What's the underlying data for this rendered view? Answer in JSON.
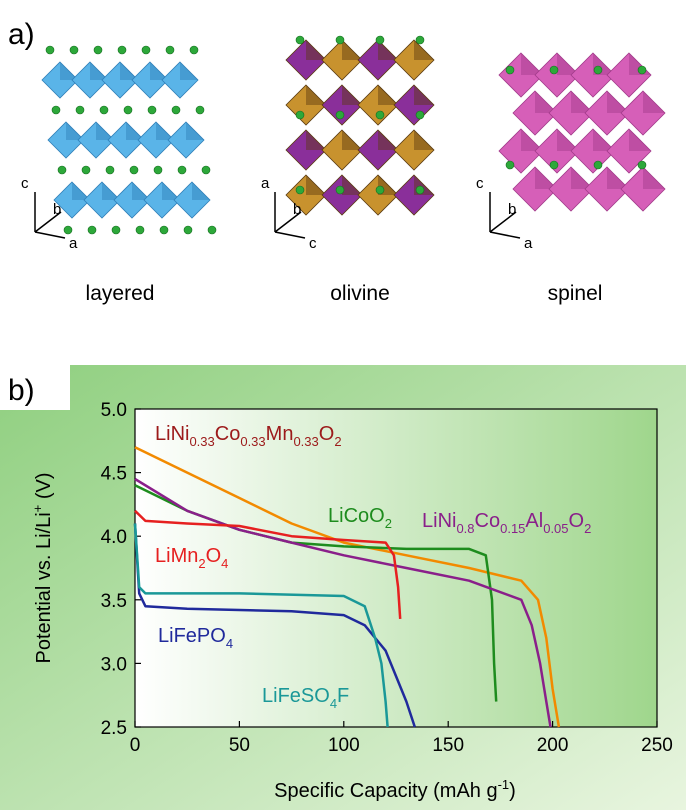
{
  "panel_a": {
    "label": "a)",
    "structures": [
      {
        "name": "layered",
        "axes": [
          "c",
          "b",
          "a"
        ]
      },
      {
        "name": "olivine",
        "axes": [
          "a",
          "b",
          "c"
        ]
      },
      {
        "name": "spinel",
        "axes": [
          "c",
          "b",
          "a"
        ]
      }
    ]
  },
  "chart_data": {
    "type": "line",
    "panel_label": "b)",
    "x_label": [
      "Specific Capacity (mAh g",
      "-1",
      ")"
    ],
    "y_label": [
      "Potential vs. Li/Li",
      "+",
      " (V)"
    ],
    "xlim": [
      0,
      250
    ],
    "ylim": [
      2.5,
      5.0
    ],
    "xticks": [
      0,
      50,
      100,
      150,
      200,
      250
    ],
    "yticks": [
      2.5,
      {
        "value": 3.0,
        "label": "3.0"
      },
      3.5,
      {
        "value": 4.0,
        "label": "4.0"
      },
      4.5,
      {
        "value": 5.0,
        "label": "5.0"
      }
    ],
    "series": [
      {
        "name": [
          "LiNi",
          "0.33",
          "Co",
          "0.33",
          "Mn",
          "0.33",
          "O",
          "2"
        ],
        "color": "#f28a00",
        "label_color": "#9c1a1a",
        "x": [
          0,
          25,
          50,
          75,
          100,
          130,
          160,
          185,
          193,
          197,
          200,
          203
        ],
        "values": [
          4.7,
          4.5,
          4.3,
          4.1,
          3.95,
          3.85,
          3.75,
          3.65,
          3.5,
          3.2,
          2.8,
          2.5
        ]
      },
      {
        "name": [
          "LiCoO",
          "2"
        ],
        "color": "#1e8c1e",
        "label_color": "#1e8c1e",
        "x": [
          0,
          25,
          50,
          75,
          100,
          130,
          160,
          168,
          171,
          172,
          173
        ],
        "values": [
          4.4,
          4.2,
          4.05,
          3.95,
          3.92,
          3.9,
          3.9,
          3.85,
          3.5,
          3.0,
          2.7
        ]
      },
      {
        "name": [
          "LiNi",
          "0.8",
          "Co",
          "0.15",
          "Al",
          "0.05",
          "O",
          "2"
        ],
        "color": "#8a1f8a",
        "label_color": "#8a1f8a",
        "x": [
          0,
          25,
          50,
          75,
          100,
          130,
          160,
          185,
          190,
          194,
          197,
          199
        ],
        "values": [
          4.45,
          4.2,
          4.05,
          3.95,
          3.85,
          3.75,
          3.65,
          3.5,
          3.3,
          3.0,
          2.7,
          2.5
        ]
      },
      {
        "name": [
          "LiMn",
          "2",
          "O",
          "4"
        ],
        "color": "#e62020",
        "label_color": "#e62020",
        "x": [
          0,
          5,
          25,
          50,
          75,
          100,
          120,
          124,
          126,
          127
        ],
        "values": [
          4.2,
          4.12,
          4.1,
          4.08,
          4.0,
          3.97,
          3.95,
          3.85,
          3.6,
          3.35
        ]
      },
      {
        "name": [
          "LiFePO",
          "4"
        ],
        "color": "#202a9c",
        "label_color": "#202a9c",
        "x": [
          0,
          2,
          5,
          25,
          50,
          75,
          100,
          110,
          120,
          125,
          130,
          134
        ],
        "values": [
          4.1,
          3.55,
          3.45,
          3.43,
          3.42,
          3.41,
          3.38,
          3.3,
          3.1,
          2.9,
          2.7,
          2.5
        ]
      },
      {
        "name": [
          "LiFeSO",
          "4",
          "F"
        ],
        "color": "#1a9898",
        "label_color": "#1a9898",
        "x": [
          0,
          2,
          5,
          50,
          100,
          110,
          115,
          118,
          120,
          121
        ],
        "values": [
          4.1,
          3.6,
          3.55,
          3.55,
          3.53,
          3.45,
          3.2,
          3.0,
          2.7,
          2.5
        ]
      }
    ]
  }
}
